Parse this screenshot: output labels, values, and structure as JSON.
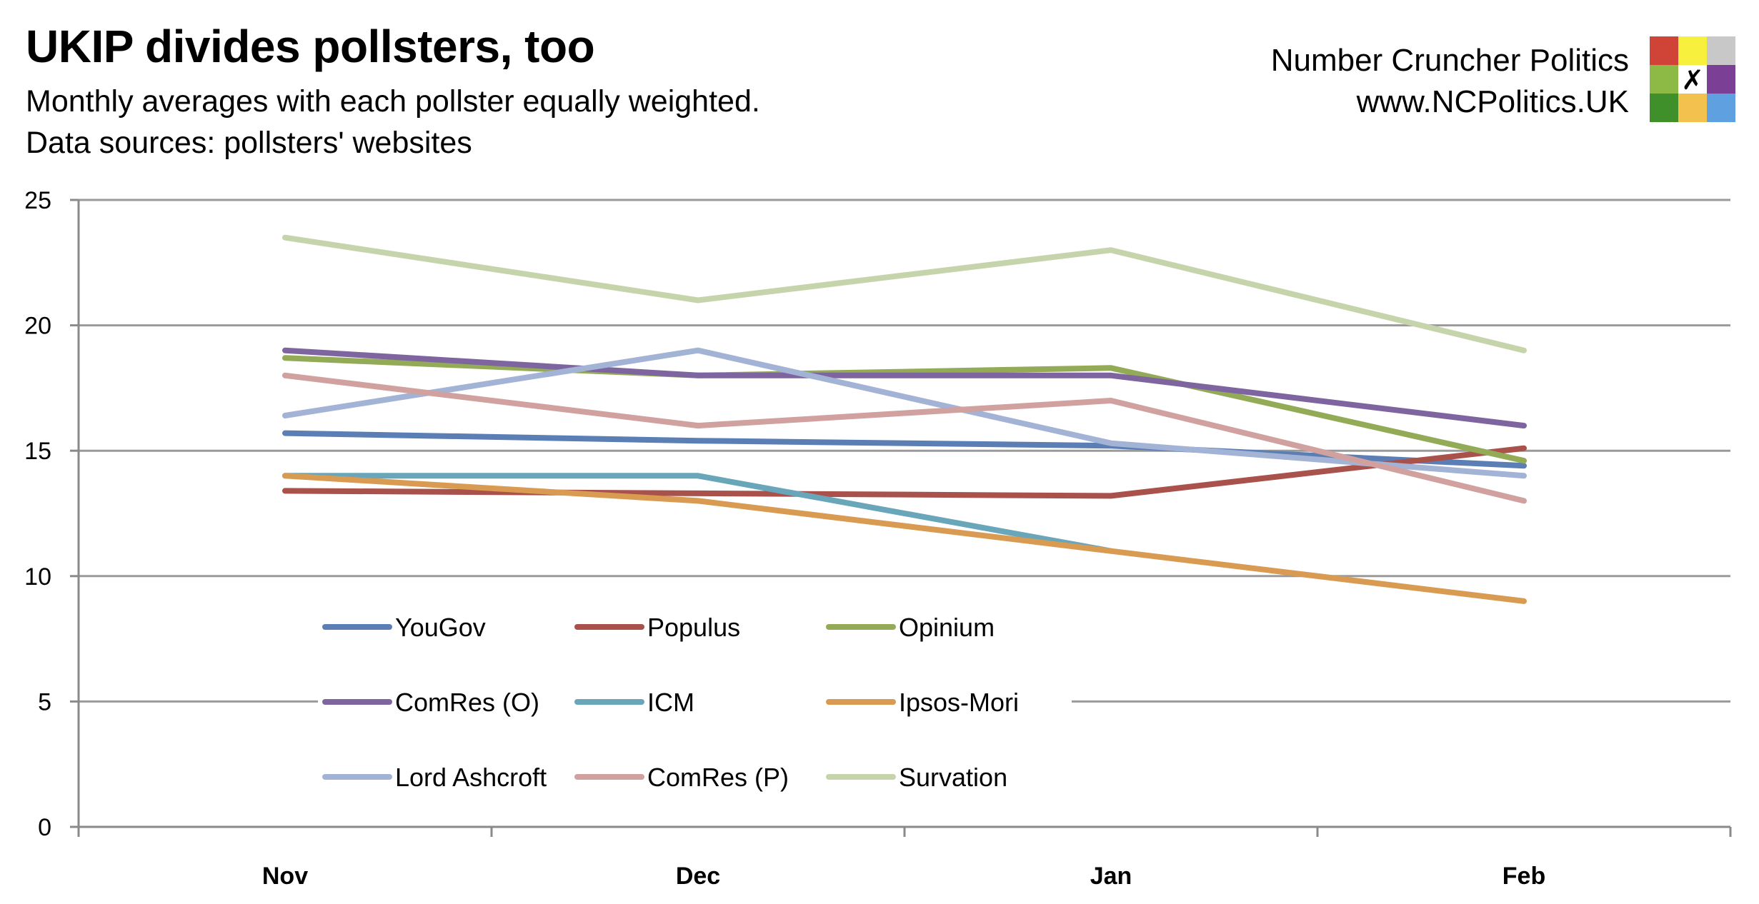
{
  "header": {
    "title": "UKIP divides pollsters, too",
    "subtitle": "Monthly averages with each pollster equally weighted.",
    "source": "Data sources: pollsters' websites",
    "brand_name": "Number Cruncher Politics",
    "brand_url": "www.NCPolitics.UK"
  },
  "logo": {
    "colors": [
      "#d04437",
      "#f7f03c",
      "#c8c8c8",
      "#8dba45",
      "#ffffff",
      "#7b3f96",
      "#3f8f2a",
      "#f2c14e",
      "#5ea0e0"
    ],
    "mark": "✗"
  },
  "chart_data": {
    "type": "line",
    "categories": [
      "Nov",
      "Dec",
      "Jan",
      "Feb"
    ],
    "ylim": [
      0,
      25
    ],
    "yticks": [
      0,
      5,
      10,
      15,
      20,
      25
    ],
    "grid": true,
    "legend_position": "lower-center",
    "series": [
      {
        "name": "YouGov",
        "color": "#5b7fb4",
        "values": [
          15.7,
          15.4,
          15.2,
          14.4
        ]
      },
      {
        "name": "Populus",
        "color": "#a9514b",
        "values": [
          13.4,
          13.3,
          13.2,
          15.1
        ]
      },
      {
        "name": "Opinium",
        "color": "#93aa56",
        "values": [
          18.7,
          18.0,
          18.3,
          14.6
        ]
      },
      {
        "name": "ComRes (O)",
        "color": "#7e65a0",
        "values": [
          19.0,
          18.0,
          18.0,
          16.0
        ]
      },
      {
        "name": "ICM",
        "color": "#6aa6ba",
        "values": [
          14.0,
          14.0,
          11.0,
          null
        ]
      },
      {
        "name": "Ipsos-Mori",
        "color": "#d99a52",
        "values": [
          14.0,
          13.0,
          11.0,
          9.0
        ]
      },
      {
        "name": "Lord Ashcroft",
        "color": "#a3b3d6",
        "values": [
          16.4,
          19.0,
          15.3,
          14.0
        ]
      },
      {
        "name": "ComRes (P)",
        "color": "#d0a19e",
        "values": [
          18.0,
          16.0,
          17.0,
          13.0
        ]
      },
      {
        "name": "Survation",
        "color": "#c6d4ac",
        "values": [
          23.5,
          21.0,
          23.0,
          19.0
        ]
      }
    ]
  }
}
